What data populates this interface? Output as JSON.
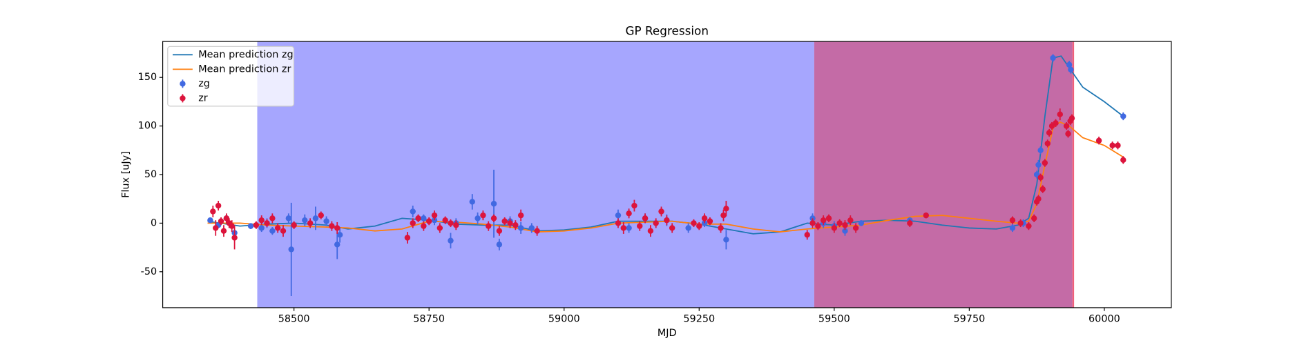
{
  "chart_data": {
    "type": "scatter",
    "title": "GP Regression",
    "xlabel": "MJD",
    "ylabel": "Flux [uJy]",
    "xlim": [
      58257,
      60124
    ],
    "ylim": [
      -87,
      187
    ],
    "xticks": [
      58500,
      58750,
      59000,
      59250,
      59500,
      59750,
      60000
    ],
    "yticks": [
      -50,
      0,
      50,
      100,
      150
    ],
    "legend": "upper left",
    "spans": [
      {
        "start": 58432,
        "end": 59463,
        "color": "#a6a6fe"
      },
      {
        "start": 59463,
        "end": 59941,
        "color": "#c46ba6"
      },
      {
        "start": 59941,
        "end": 59944,
        "color": "#f0607a"
      }
    ],
    "lines": [
      {
        "name": "Mean prediction zg",
        "color": "#1f77b4",
        "x": [
          58340,
          58400,
          58450,
          58500,
          58560,
          58600,
          58650,
          58700,
          58750,
          58800,
          58850,
          58900,
          58950,
          59000,
          59050,
          59100,
          59150,
          59200,
          59250,
          59300,
          59350,
          59400,
          59450,
          59500,
          59550,
          59600,
          59650,
          59700,
          59750,
          59800,
          59840,
          59860,
          59875,
          59890,
          59905,
          59920,
          59935,
          59960,
          60000,
          60035
        ],
        "values": [
          2,
          -3,
          -1,
          0,
          -2,
          -6,
          -3,
          5,
          3,
          -1,
          -2,
          -2,
          -8,
          -7,
          -4,
          2,
          2,
          2,
          -1,
          -6,
          -11,
          -9,
          0,
          -2,
          2,
          3,
          2,
          -2,
          -5,
          -6,
          -2,
          5,
          40,
          110,
          170,
          172,
          160,
          140,
          125,
          110
        ]
      },
      {
        "name": "Mean prediction zr",
        "color": "#ff7f0e",
        "x": [
          58340,
          58400,
          58450,
          58500,
          58560,
          58600,
          58650,
          58700,
          58750,
          58800,
          58850,
          58900,
          58950,
          59000,
          59050,
          59100,
          59150,
          59200,
          59250,
          59300,
          59350,
          59400,
          59450,
          59500,
          59550,
          59600,
          59650,
          59700,
          59750,
          59800,
          59840,
          59860,
          59875,
          59890,
          59905,
          59918,
          59935,
          59960,
          60000,
          60035
        ],
        "values": [
          0,
          0,
          -2,
          -3,
          -4,
          -5,
          -8,
          -6,
          2,
          1,
          -1,
          -4,
          -9,
          -8,
          -5,
          0,
          1,
          2,
          -1,
          -1,
          -6,
          -9,
          -6,
          -4,
          -2,
          3,
          7,
          8,
          5,
          2,
          0,
          2,
          20,
          60,
          98,
          104,
          100,
          88,
          80,
          68
        ]
      }
    ],
    "series": [
      {
        "name": "zg",
        "color": "#4169e1",
        "x": [
          58345,
          58360,
          58375,
          58390,
          58420,
          58440,
          58450,
          58460,
          58490,
          58495,
          58520,
          58540,
          58560,
          58580,
          58585,
          58720,
          58740,
          58760,
          58790,
          58800,
          58830,
          58840,
          58870,
          58880,
          58900,
          58920,
          58940,
          59100,
          59120,
          59150,
          59190,
          59230,
          59260,
          59300,
          59460,
          59480,
          59500,
          59520,
          59550,
          59640,
          59830,
          59850,
          59875,
          59878,
          59882,
          59905,
          59935,
          59938,
          60035
        ],
        "values": [
          3,
          -2,
          5,
          -10,
          -3,
          -5,
          0,
          -8,
          5,
          -27,
          3,
          5,
          2,
          -22,
          -12,
          12,
          5,
          3,
          -18,
          0,
          22,
          5,
          20,
          -22,
          2,
          -5,
          -5,
          8,
          -5,
          5,
          3,
          -5,
          0,
          -17,
          5,
          0,
          -3,
          -8,
          0,
          3,
          -5,
          0,
          50,
          60,
          75,
          170,
          163,
          158,
          110
        ],
        "errors": [
          2,
          3,
          4,
          6,
          3,
          4,
          5,
          4,
          5,
          48,
          6,
          12,
          5,
          15,
          8,
          6,
          4,
          5,
          8,
          5,
          8,
          6,
          35,
          6,
          5,
          6,
          5,
          6,
          5,
          5,
          6,
          5,
          4,
          10,
          5,
          5,
          5,
          5,
          3,
          3,
          4,
          4,
          4,
          5,
          4,
          4,
          4,
          4,
          4
        ]
      },
      {
        "name": "zr",
        "color": "#dc143c",
        "x": [
          58350,
          58355,
          58360,
          58365,
          58370,
          58375,
          58380,
          58385,
          58390,
          58430,
          58440,
          58450,
          58460,
          58470,
          58480,
          58500,
          58530,
          58550,
          58570,
          58580,
          58710,
          58720,
          58730,
          58740,
          58750,
          58760,
          58770,
          58780,
          58790,
          58800,
          58850,
          58860,
          58870,
          58880,
          58890,
          58900,
          58910,
          58920,
          58950,
          59100,
          59110,
          59120,
          59130,
          59140,
          59150,
          59160,
          59170,
          59180,
          59190,
          59200,
          59240,
          59250,
          59260,
          59270,
          59290,
          59295,
          59300,
          59450,
          59460,
          59470,
          59480,
          59490,
          59500,
          59510,
          59520,
          59530,
          59540,
          59640,
          59670,
          59830,
          59845,
          59860,
          59870,
          59875,
          59878,
          59882,
          59886,
          59890,
          59895,
          59898,
          59903,
          59910,
          59918,
          59930,
          59933,
          59937,
          59940,
          59990,
          60015,
          60025,
          60035
        ],
        "values": [
          12,
          -5,
          18,
          2,
          -8,
          5,
          0,
          -3,
          -15,
          -2,
          3,
          0,
          5,
          -5,
          -8,
          -2,
          0,
          8,
          -3,
          -5,
          -15,
          0,
          5,
          -3,
          2,
          8,
          -5,
          3,
          0,
          -2,
          8,
          -3,
          5,
          -8,
          2,
          0,
          -2,
          8,
          -8,
          0,
          -5,
          10,
          18,
          -3,
          5,
          -8,
          0,
          12,
          3,
          -5,
          0,
          -3,
          5,
          2,
          -5,
          8,
          15,
          -12,
          0,
          -3,
          3,
          5,
          -5,
          0,
          -2,
          3,
          -5,
          0,
          8,
          3,
          0,
          -3,
          5,
          22,
          25,
          47,
          35,
          62,
          82,
          93,
          100,
          103,
          112,
          100,
          92,
          105,
          108,
          85,
          80,
          80,
          65
        ],
        "errors": [
          6,
          8,
          5,
          4,
          6,
          5,
          5,
          6,
          12,
          4,
          5,
          4,
          5,
          5,
          6,
          4,
          5,
          4,
          5,
          6,
          6,
          5,
          4,
          5,
          4,
          5,
          5,
          4,
          4,
          5,
          5,
          5,
          4,
          5,
          4,
          5,
          5,
          6,
          5,
          5,
          6,
          5,
          6,
          5,
          5,
          6,
          5,
          5,
          5,
          5,
          4,
          4,
          5,
          4,
          5,
          6,
          8,
          5,
          5,
          4,
          5,
          4,
          5,
          4,
          5,
          5,
          5,
          4,
          3,
          4,
          4,
          4,
          4,
          4,
          4,
          4,
          4,
          4,
          4,
          4,
          4,
          4,
          6,
          4,
          4,
          4,
          4,
          4,
          4,
          4,
          4
        ]
      }
    ]
  }
}
